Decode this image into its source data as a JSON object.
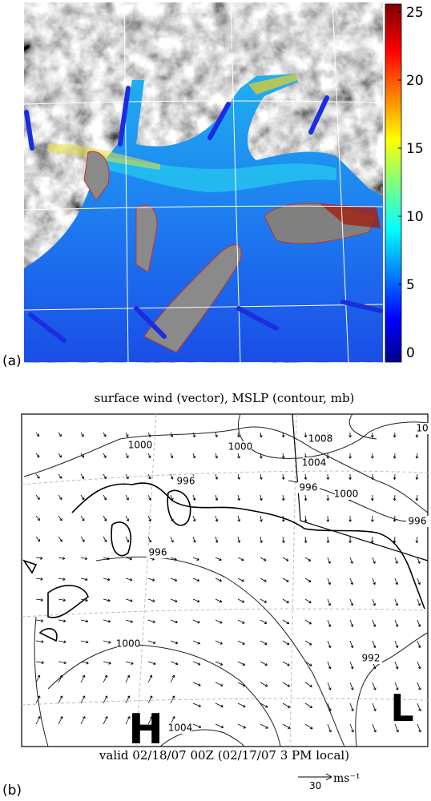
{
  "panel_a": {
    "label": "(a)",
    "colorbar": {
      "lim": [
        0,
        25
      ],
      "ticks": [
        0,
        5,
        10,
        15,
        20,
        25
      ]
    }
  },
  "panel_b": {
    "label": "(b)",
    "title": "surface wind (vector), MSLP (contour, mb)",
    "contour_labels": [
      1008,
      10,
      1000,
      1000,
      1004,
      996,
      996,
      1000,
      996,
      996,
      1000,
      992,
      1004
    ],
    "pressure_centers": [
      "H",
      "L"
    ],
    "footer": "valid 02/18/07 00Z (02/17/07 3 PM local)",
    "scale": {
      "value": "30",
      "unit": "ms⁻¹"
    }
  }
}
